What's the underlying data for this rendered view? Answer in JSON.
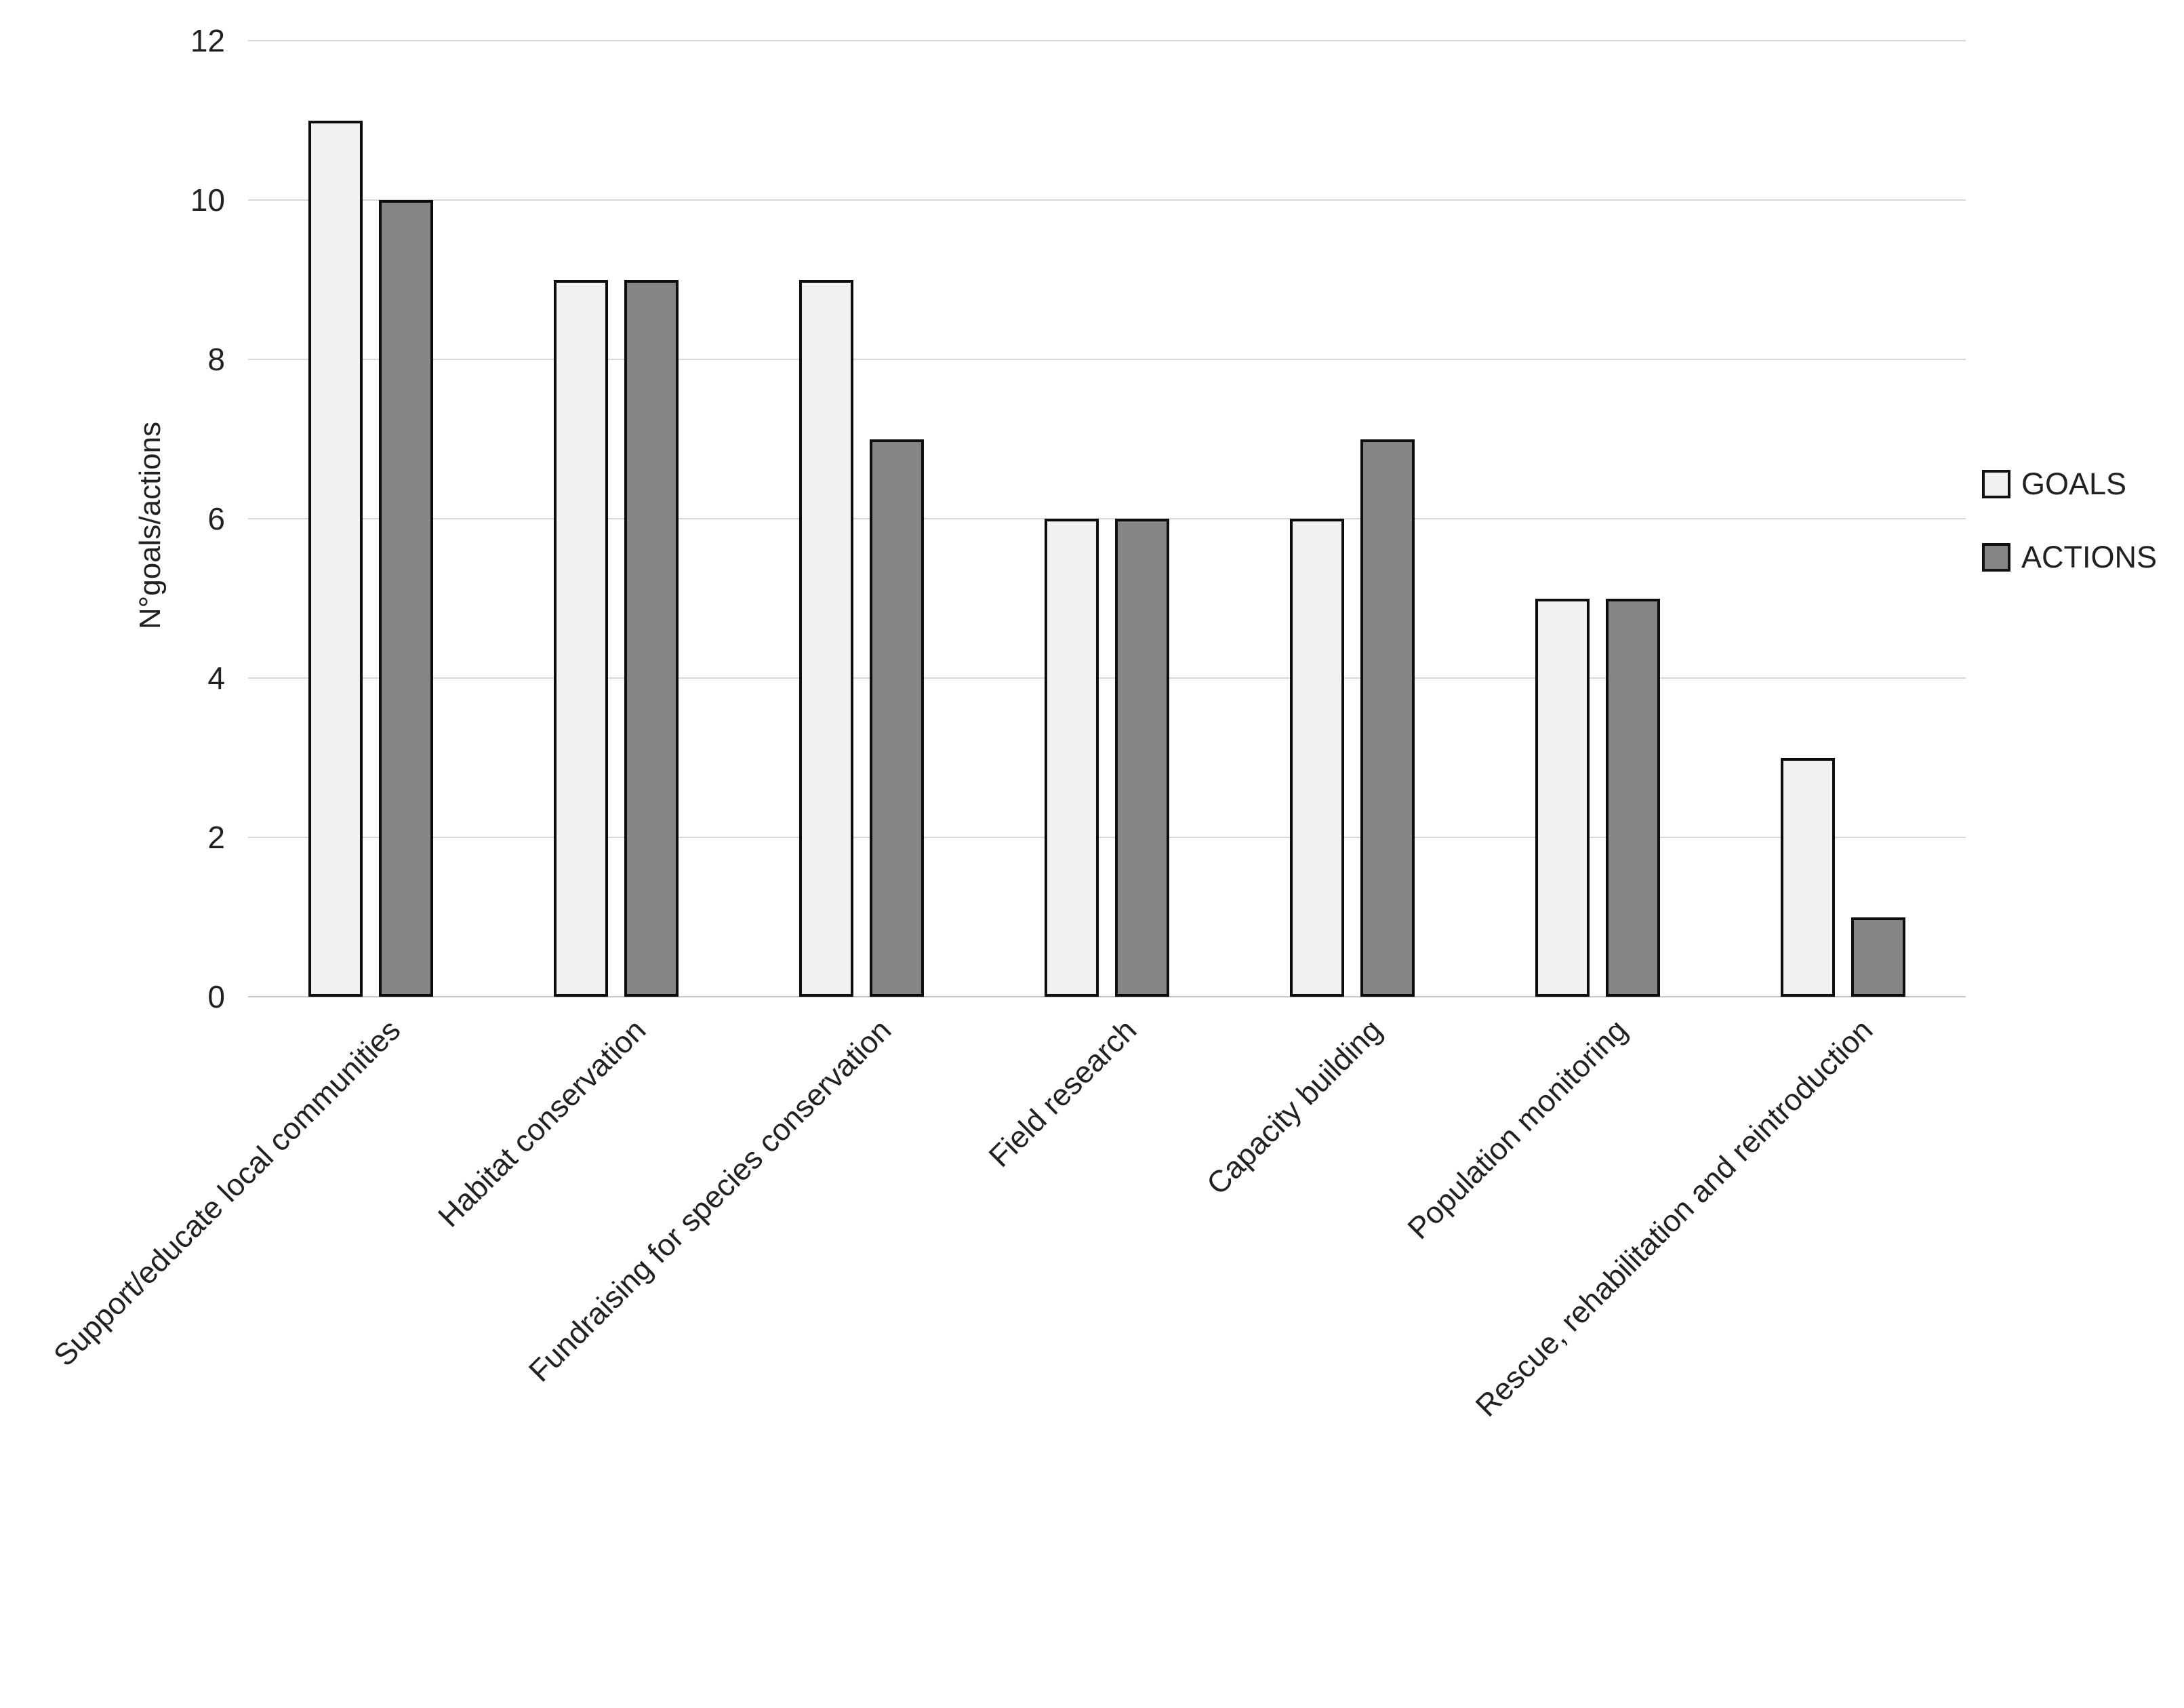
{
  "chart_data": {
    "type": "bar",
    "title": "",
    "xlabel": "",
    "ylabel": "N°goals/actions",
    "categories": [
      "Support/educate local communities",
      "Habitat conservation",
      "Fundraising for species conservation",
      "Field research",
      "Capacity building",
      "Population monitoring",
      "Rescue, rehabilitation and reintroduction"
    ],
    "series": [
      {
        "name": "GOALS",
        "color": "#f1f1f1",
        "values": [
          11,
          9,
          9,
          6,
          6,
          5,
          3
        ]
      },
      {
        "name": "ACTIONS",
        "color": "#858585",
        "values": [
          10,
          9,
          7,
          6,
          7,
          5,
          1
        ]
      }
    ],
    "ylim": [
      0,
      12
    ],
    "yticks": [
      0,
      2,
      4,
      6,
      8,
      10,
      12
    ],
    "grid": "horizontal",
    "legend_position": "right"
  },
  "colors": {
    "background": "#ffffff",
    "gridline": "#d9d9d9",
    "axis_line": "#c6c6c6",
    "bar_border": "#0d0d0d",
    "text": "#212121"
  }
}
